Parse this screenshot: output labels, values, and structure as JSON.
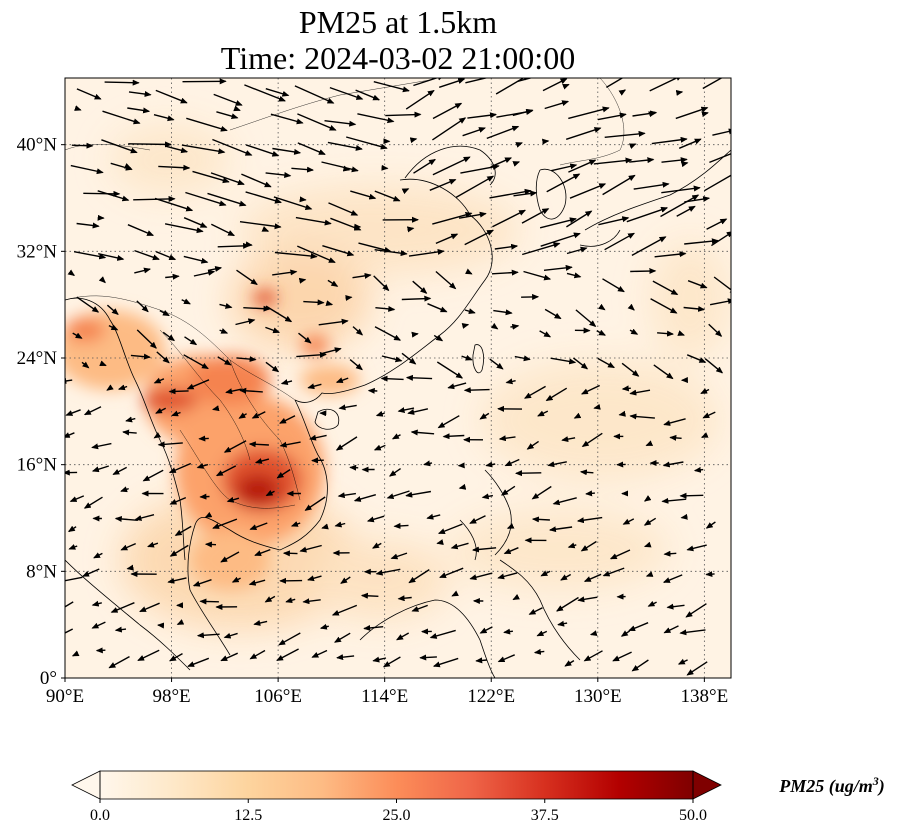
{
  "title_line1": "PM25 at 1.5km",
  "title_line2": "Time: 2024-03-02 21:00:00",
  "map": {
    "lon_range": [
      90,
      140
    ],
    "lat_range": [
      0,
      45
    ],
    "lon_ticks": [
      {
        "value": 90,
        "label": "90°E"
      },
      {
        "value": 98,
        "label": "98°E"
      },
      {
        "value": 106,
        "label": "106°E"
      },
      {
        "value": 114,
        "label": "114°E"
      },
      {
        "value": 122,
        "label": "122°E"
      },
      {
        "value": 130,
        "label": "130°E"
      },
      {
        "value": 138,
        "label": "138°E"
      }
    ],
    "lat_ticks": [
      {
        "value": 0,
        "label": "0°"
      },
      {
        "value": 8,
        "label": "8°N"
      },
      {
        "value": 16,
        "label": "16°N"
      },
      {
        "value": 24,
        "label": "24°N"
      },
      {
        "value": 32,
        "label": "32°N"
      },
      {
        "value": 40,
        "label": "40°N"
      }
    ],
    "gridlines": true,
    "field_colormap": "OrRd",
    "vector_color": "#000000"
  },
  "colorbar": {
    "label_text": "PM25 (ug/m",
    "label_sup": "3",
    "label_close": ")",
    "min": 0,
    "max": 50,
    "extend": "both",
    "ticks": [
      {
        "value": 0,
        "label": "0.0"
      },
      {
        "value": 12.5,
        "label": "12.5"
      },
      {
        "value": 25,
        "label": "25.0"
      },
      {
        "value": 37.5,
        "label": "37.5"
      },
      {
        "value": 50,
        "label": "50.0"
      }
    ],
    "colors": [
      "#fff7ec",
      "#fee8c8",
      "#fdd49e",
      "#fdbb84",
      "#fc8d59",
      "#ef6548",
      "#d7301f",
      "#b30000",
      "#7f0000"
    ]
  }
}
